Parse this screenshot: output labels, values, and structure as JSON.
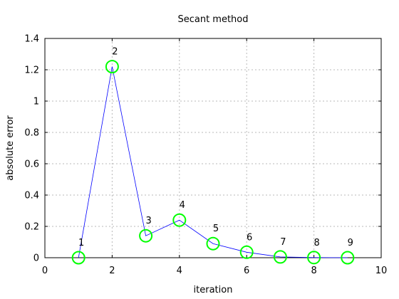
{
  "chart_data": {
    "type": "line",
    "title": "Secant method",
    "xlabel": "iteration",
    "ylabel": "absolute error",
    "xlim": [
      0,
      10
    ],
    "ylim": [
      0,
      1.4
    ],
    "xticks": [
      0,
      2,
      4,
      6,
      8,
      10
    ],
    "yticks": [
      0,
      0.2,
      0.4,
      0.6,
      0.8,
      1,
      1.2,
      1.4
    ],
    "xtick_labels": [
      "0",
      "2",
      "4",
      "6",
      "8",
      "10"
    ],
    "ytick_labels": [
      "0",
      "0.2",
      "0.4",
      "0.6",
      "0.8",
      "1",
      "1.2",
      "1.4"
    ],
    "grid": true,
    "line_color": "#0000ff",
    "marker_color": "#00ff00",
    "series": [
      {
        "x": [
          1,
          2,
          3,
          4,
          5,
          6,
          7,
          8,
          9
        ],
        "y": [
          0.0,
          1.22,
          0.14,
          0.24,
          0.09,
          0.035,
          0.005,
          0.001,
          0.0
        ],
        "point_labels": [
          "1",
          "2",
          "3",
          "4",
          "5",
          "6",
          "7",
          "8",
          "9"
        ]
      }
    ]
  }
}
